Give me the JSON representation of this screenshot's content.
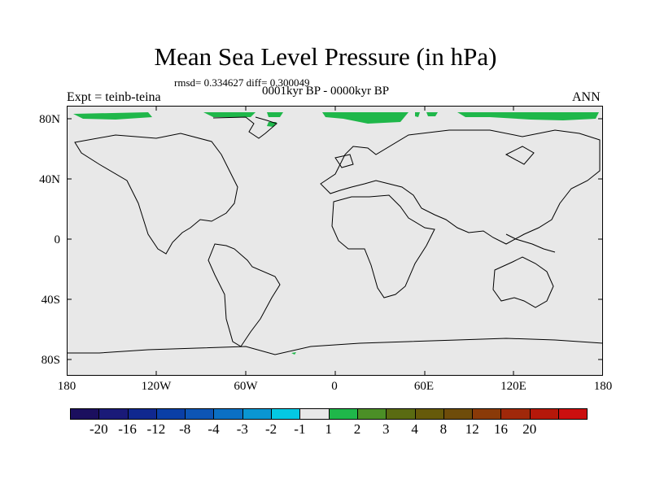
{
  "title": "Mean Sea Level Pressure (in hPa)",
  "stats": "rmsd= 0.334627 diff= 0.300049",
  "period": "0001kyr BP - 0000kyr BP",
  "experiment": "Expt = teinb-teina",
  "season": "ANN",
  "lat_labels": [
    "80N",
    "40N",
    "0",
    "40S",
    "80S"
  ],
  "lon_labels": [
    "180",
    "120W",
    "60W",
    "0",
    "60E",
    "120E",
    "180"
  ],
  "colorbar": {
    "colors": [
      "#1b0f5e",
      "#1a1a78",
      "#10288f",
      "#0a3fa6",
      "#0d55b5",
      "#0b70c4",
      "#0a96d2",
      "#04c8e3",
      "#e8e8e8",
      "#1fb74a",
      "#4b8f26",
      "#5a6b12",
      "#665a0a",
      "#6e4c0a",
      "#8a3a08",
      "#a0280a",
      "#b5180a",
      "#cc0f0f"
    ],
    "labels": [
      "-20",
      "-16",
      "-12",
      "-8",
      "-4",
      "-3",
      "-2",
      "-1",
      "1",
      "2",
      "3",
      "4",
      "8",
      "12",
      "16",
      "20"
    ]
  },
  "colors": {
    "background": "#e8e8e8",
    "positive": "#1fb74a",
    "coast": "#000000"
  }
}
